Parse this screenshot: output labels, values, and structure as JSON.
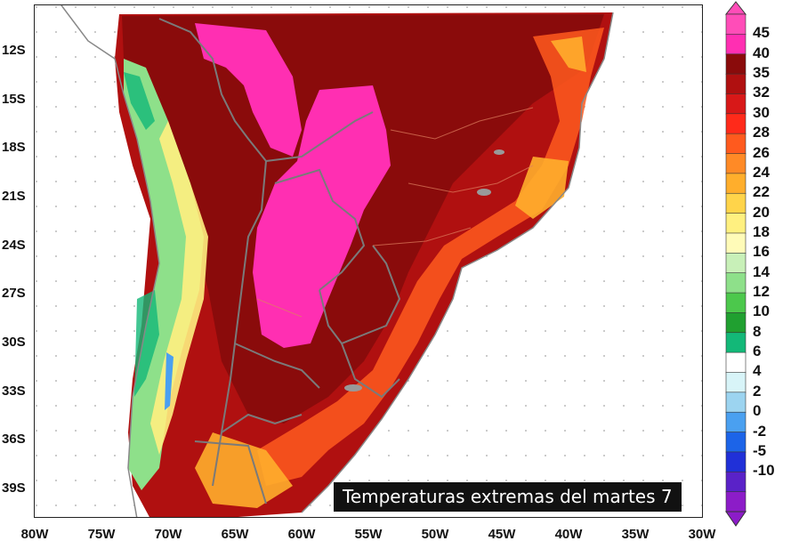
{
  "caption": "Temperaturas extremas del martes 7",
  "axes": {
    "lat_labels": [
      "12S",
      "15S",
      "18S",
      "21S",
      "24S",
      "27S",
      "30S",
      "33S",
      "36S",
      "39S"
    ],
    "lon_labels": [
      "80W",
      "75W",
      "70W",
      "65W",
      "60W",
      "55W",
      "50W",
      "45W",
      "40W",
      "35W",
      "30W"
    ]
  },
  "colorbar": {
    "labels": [
      "45",
      "40",
      "35",
      "32",
      "30",
      "28",
      "26",
      "24",
      "22",
      "20",
      "18",
      "16",
      "14",
      "12",
      "10",
      "8",
      "6",
      "4",
      "2",
      "0",
      "-2",
      "-5",
      "-10"
    ],
    "colors": [
      "#ff4db8",
      "#ff2fb2",
      "#8a0b0b",
      "#b01010",
      "#d81818",
      "#ff2a1a",
      "#ff5a1e",
      "#ff8a26",
      "#ffae2c",
      "#ffd44a",
      "#fff080",
      "#fffbb8",
      "#c8f0b8",
      "#8ee08a",
      "#4cc84c",
      "#20a030",
      "#13b878",
      "#ffffff",
      "#d8f4f8",
      "#9cd4f0",
      "#4aa0f0",
      "#1c64e8",
      "#2030d8",
      "#5a22c8",
      "#8c1cc8"
    ]
  }
}
